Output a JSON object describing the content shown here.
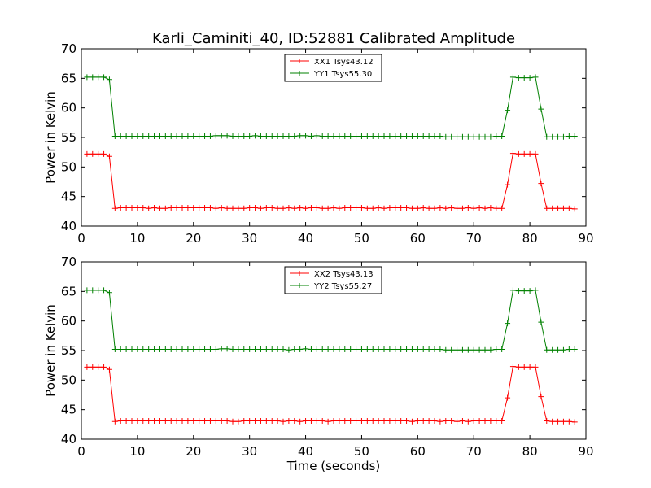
{
  "title": "Karli_Caminiti_40, ID:52881 Calibrated Amplitude",
  "colors": {
    "xx": "#ff0000",
    "yy": "#008000"
  },
  "chart_data": [
    {
      "type": "line",
      "xlabel": "",
      "ylabel": "Power in Kelvin",
      "xlim": [
        0,
        90
      ],
      "ylim": [
        40,
        70
      ],
      "xticks": [
        "0",
        "10",
        "20",
        "30",
        "40",
        "50",
        "60",
        "70",
        "80",
        "90"
      ],
      "yticks": [
        "40",
        "45",
        "50",
        "55",
        "60",
        "65",
        "70"
      ],
      "grid": false,
      "legend": "top-center",
      "x": [
        1,
        2,
        3,
        4,
        5,
        6,
        7,
        8,
        9,
        10,
        11,
        12,
        13,
        14,
        15,
        16,
        17,
        18,
        19,
        20,
        21,
        22,
        23,
        24,
        25,
        26,
        27,
        28,
        29,
        30,
        31,
        32,
        33,
        34,
        35,
        36,
        37,
        38,
        39,
        40,
        41,
        42,
        43,
        44,
        45,
        46,
        47,
        48,
        49,
        50,
        51,
        52,
        53,
        54,
        55,
        56,
        57,
        58,
        59,
        60,
        61,
        62,
        63,
        64,
        65,
        66,
        67,
        68,
        69,
        70,
        71,
        72,
        73,
        74,
        75,
        76,
        77,
        78,
        79,
        80,
        81,
        82,
        83,
        84,
        85,
        86,
        87,
        88
      ],
      "series": [
        {
          "name": "XX1 Tsys43.12",
          "color": "#ff0000",
          "values": [
            52.2,
            52.2,
            52.2,
            52.2,
            51.8,
            43.0,
            43.1,
            43.1,
            43.1,
            43.1,
            43.1,
            43.0,
            43.1,
            43.0,
            43.0,
            43.1,
            43.1,
            43.1,
            43.1,
            43.1,
            43.1,
            43.1,
            43.1,
            43.0,
            43.1,
            43.0,
            43.0,
            43.0,
            43.0,
            43.1,
            43.1,
            43.0,
            43.1,
            43.1,
            43.0,
            43.0,
            43.1,
            43.0,
            43.1,
            43.0,
            43.1,
            43.1,
            43.0,
            43.0,
            43.1,
            43.0,
            43.1,
            43.1,
            43.1,
            43.1,
            43.0,
            43.0,
            43.1,
            43.0,
            43.1,
            43.1,
            43.1,
            43.1,
            43.0,
            43.0,
            43.1,
            43.0,
            43.0,
            43.1,
            43.0,
            43.1,
            43.0,
            43.0,
            43.1,
            43.0,
            43.1,
            43.0,
            43.1,
            43.0,
            43.0,
            47.0,
            52.3,
            52.2,
            52.2,
            52.2,
            52.2,
            47.2,
            43.0,
            43.0,
            43.0,
            43.0,
            43.0,
            42.9
          ]
        },
        {
          "name": "YY1 Tsys55.30",
          "color": "#008000",
          "values": [
            65.2,
            65.2,
            65.2,
            65.2,
            64.8,
            55.2,
            55.2,
            55.2,
            55.2,
            55.2,
            55.2,
            55.2,
            55.2,
            55.2,
            55.2,
            55.2,
            55.2,
            55.2,
            55.2,
            55.2,
            55.2,
            55.2,
            55.2,
            55.3,
            55.3,
            55.3,
            55.2,
            55.2,
            55.2,
            55.2,
            55.3,
            55.2,
            55.2,
            55.2,
            55.2,
            55.2,
            55.2,
            55.2,
            55.3,
            55.3,
            55.2,
            55.3,
            55.2,
            55.2,
            55.2,
            55.2,
            55.2,
            55.2,
            55.2,
            55.2,
            55.2,
            55.2,
            55.2,
            55.2,
            55.2,
            55.2,
            55.2,
            55.2,
            55.2,
            55.2,
            55.2,
            55.2,
            55.2,
            55.2,
            55.1,
            55.1,
            55.1,
            55.1,
            55.1,
            55.1,
            55.1,
            55.1,
            55.1,
            55.2,
            55.2,
            59.6,
            65.2,
            65.1,
            65.1,
            65.1,
            65.2,
            59.8,
            55.1,
            55.1,
            55.1,
            55.1,
            55.2,
            55.2
          ]
        }
      ]
    },
    {
      "type": "line",
      "xlabel": "Time (seconds)",
      "ylabel": "Power in Kelvin",
      "xlim": [
        0,
        90
      ],
      "ylim": [
        40,
        70
      ],
      "xticks": [
        "0",
        "10",
        "20",
        "30",
        "40",
        "50",
        "60",
        "70",
        "80",
        "90"
      ],
      "yticks": [
        "40",
        "45",
        "50",
        "55",
        "60",
        "65",
        "70"
      ],
      "grid": false,
      "legend": "top-center",
      "x": [
        1,
        2,
        3,
        4,
        5,
        6,
        7,
        8,
        9,
        10,
        11,
        12,
        13,
        14,
        15,
        16,
        17,
        18,
        19,
        20,
        21,
        22,
        23,
        24,
        25,
        26,
        27,
        28,
        29,
        30,
        31,
        32,
        33,
        34,
        35,
        36,
        37,
        38,
        39,
        40,
        41,
        42,
        43,
        44,
        45,
        46,
        47,
        48,
        49,
        50,
        51,
        52,
        53,
        54,
        55,
        56,
        57,
        58,
        59,
        60,
        61,
        62,
        63,
        64,
        65,
        66,
        67,
        68,
        69,
        70,
        71,
        72,
        73,
        74,
        75,
        76,
        77,
        78,
        79,
        80,
        81,
        82,
        83,
        84,
        85,
        86,
        87,
        88
      ],
      "series": [
        {
          "name": "XX2 Tsys43.13",
          "color": "#ff0000",
          "values": [
            52.2,
            52.2,
            52.2,
            52.2,
            51.8,
            43.0,
            43.1,
            43.1,
            43.1,
            43.1,
            43.1,
            43.1,
            43.1,
            43.1,
            43.1,
            43.1,
            43.1,
            43.1,
            43.1,
            43.1,
            43.1,
            43.1,
            43.1,
            43.1,
            43.1,
            43.1,
            43.0,
            43.0,
            43.1,
            43.1,
            43.1,
            43.1,
            43.1,
            43.1,
            43.1,
            43.0,
            43.1,
            43.1,
            43.0,
            43.1,
            43.1,
            43.1,
            43.1,
            43.0,
            43.1,
            43.1,
            43.1,
            43.1,
            43.1,
            43.1,
            43.1,
            43.1,
            43.1,
            43.1,
            43.1,
            43.1,
            43.1,
            43.1,
            43.0,
            43.1,
            43.1,
            43.1,
            43.1,
            43.0,
            43.1,
            43.1,
            43.0,
            43.1,
            43.0,
            43.1,
            43.1,
            43.1,
            43.1,
            43.1,
            43.1,
            47.0,
            52.3,
            52.2,
            52.2,
            52.2,
            52.2,
            47.2,
            43.1,
            43.0,
            43.0,
            43.0,
            43.0,
            42.9
          ]
        },
        {
          "name": "YY2 Tsys55.27",
          "color": "#008000",
          "values": [
            65.2,
            65.2,
            65.2,
            65.2,
            64.8,
            55.2,
            55.2,
            55.2,
            55.2,
            55.2,
            55.2,
            55.2,
            55.2,
            55.2,
            55.2,
            55.2,
            55.2,
            55.2,
            55.2,
            55.2,
            55.2,
            55.2,
            55.2,
            55.2,
            55.3,
            55.3,
            55.2,
            55.2,
            55.2,
            55.2,
            55.2,
            55.2,
            55.2,
            55.2,
            55.2,
            55.2,
            55.1,
            55.2,
            55.2,
            55.3,
            55.2,
            55.2,
            55.2,
            55.2,
            55.2,
            55.2,
            55.2,
            55.2,
            55.2,
            55.2,
            55.2,
            55.2,
            55.2,
            55.2,
            55.2,
            55.2,
            55.2,
            55.2,
            55.2,
            55.2,
            55.2,
            55.2,
            55.2,
            55.2,
            55.1,
            55.1,
            55.1,
            55.1,
            55.1,
            55.1,
            55.1,
            55.1,
            55.1,
            55.2,
            55.2,
            59.6,
            65.2,
            65.1,
            65.1,
            65.1,
            65.2,
            59.8,
            55.1,
            55.1,
            55.1,
            55.1,
            55.2,
            55.2
          ]
        }
      ]
    }
  ]
}
